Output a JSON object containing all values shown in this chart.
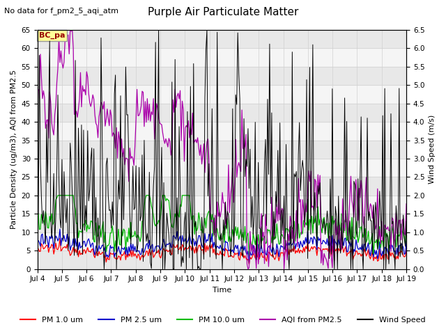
{
  "title": "Purple Air Particulate Matter",
  "subtitle": "No data for f_pm2_5_aqi_atm",
  "xlabel": "Time",
  "ylabel_left": "Particle Density (ug/m3), AQI from PM2.5",
  "ylabel_right": "Wind Speed (m/s)",
  "ylim_left": [
    0,
    65
  ],
  "ylim_right": [
    0.0,
    6.5
  ],
  "yticks_left": [
    0,
    5,
    10,
    15,
    20,
    25,
    30,
    35,
    40,
    45,
    50,
    55,
    60,
    65
  ],
  "yticks_right": [
    0.0,
    0.5,
    1.0,
    1.5,
    2.0,
    2.5,
    3.0,
    3.5,
    4.0,
    4.5,
    5.0,
    5.5,
    6.0,
    6.5
  ],
  "xlim": [
    0,
    15
  ],
  "xtick_labels": [
    "Jul 4",
    "Jul 5",
    "Jul 6",
    "Jul 7",
    "Jul 8",
    "Jul 9",
    "Jul 10",
    "Jul 11",
    "Jul 12",
    "Jul 13",
    "Jul 14",
    "Jul 15",
    "Jul 16",
    "Jul 17",
    "Jul 18",
    "Jul 19"
  ],
  "legend_entries": [
    "PM 1.0 um",
    "PM 2.5 um",
    "PM 10.0 um",
    "AQI from PM2.5",
    "Wind Speed"
  ],
  "legend_colors": [
    "#ff0000",
    "#0000cc",
    "#00bb00",
    "#aa00aa",
    "#000000"
  ],
  "annotation_text": "BC_pa",
  "annotation_color": "#990000",
  "annotation_bg": "#ffff99",
  "annotation_border": "#999999",
  "grid_color": "#d0d0d0",
  "bg_band_color": "#e8e8e8",
  "panel_bg": "#f5f5f5",
  "fig_bg": "#ffffff",
  "title_fontsize": 11,
  "subtitle_fontsize": 8,
  "axis_fontsize": 8,
  "tick_fontsize": 7.5,
  "legend_fontsize": 8
}
